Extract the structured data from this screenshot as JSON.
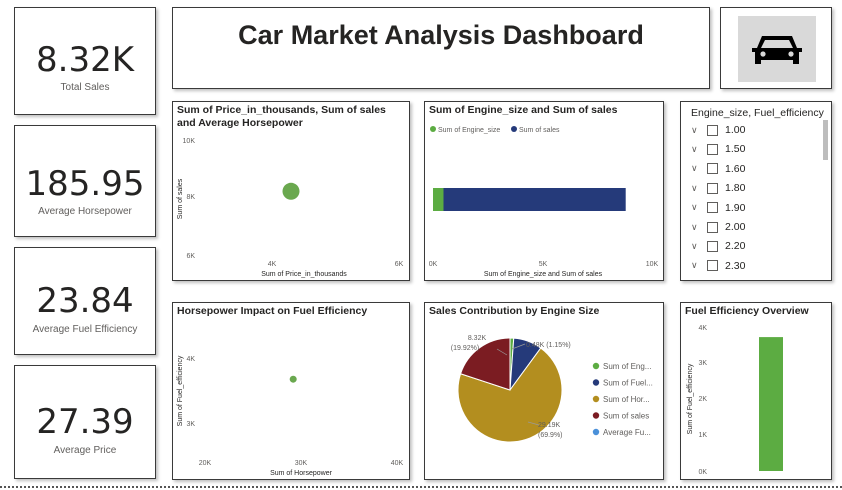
{
  "dashboard": {
    "title": "Car Market Analysis Dashboard",
    "logo_icon": "car-icon"
  },
  "kpis": [
    {
      "value": "8.32K",
      "label": "Total Sales"
    },
    {
      "value": "185.95",
      "label": "Average Horsepower"
    },
    {
      "value": "23.84",
      "label": "Average Fuel Efficiency"
    },
    {
      "value": "27.39",
      "label": "Average Price"
    }
  ],
  "scatter1": {
    "title": "Sum of Price_in_thousands, Sum of sales and Average Horsepower",
    "xlabel": "Sum of Price_in_thousands",
    "ylabel": "Sum of sales",
    "xticks": [
      "4K",
      "6K"
    ],
    "yticks": [
      "10K",
      "8K",
      "6K"
    ],
    "color": "#6aa84f"
  },
  "bar1": {
    "title": "Sum of Engine_size and Sum of sales",
    "legend": [
      "Sum of Engine_size",
      "Sum of sales"
    ],
    "colors": [
      "#5cac42",
      "#253a7a"
    ],
    "xlabel": "Sum of Engine_size and Sum of sales",
    "xticks": [
      "0K",
      "5K",
      "10K"
    ]
  },
  "slicer": {
    "header": "Engine_size, Fuel_efficiency",
    "items": [
      "1.00",
      "1.50",
      "1.60",
      "1.80",
      "1.90",
      "2.00",
      "2.20",
      "2.30"
    ]
  },
  "scatter2": {
    "title": "Horsepower Impact on Fuel Efficiency",
    "xlabel": "Sum of Horsepower",
    "ylabel": "Sum of Fuel_efficiency",
    "xticks": [
      "20K",
      "30K",
      "40K"
    ],
    "yticks": [
      "4K",
      "3K"
    ]
  },
  "pie": {
    "title": "Sales Contribution by Engine Size",
    "label_top": "8.32K",
    "label_top_pct": "(19.92%)",
    "label_right": "0.48K (1.15%)",
    "label_bottom": "29.19K",
    "label_bottom_pct": "(69.9%)",
    "legend": [
      {
        "label": "Sum of Eng...",
        "color": "#5cac42"
      },
      {
        "label": "Sum of Fuel...",
        "color": "#253a7a"
      },
      {
        "label": "Sum of Hor...",
        "color": "#b38e1f"
      },
      {
        "label": "Sum of sales",
        "color": "#7b1c22"
      },
      {
        "label": "Average Fu...",
        "color": "#4a90d9"
      }
    ]
  },
  "bar2": {
    "title": "Fuel Efficiency Overview",
    "ylabel": "Sum of Fuel_efficiency",
    "yticks": [
      "4K",
      "3K",
      "2K",
      "1K",
      "0K"
    ],
    "color": "#5cac42"
  },
  "chart_data": [
    {
      "type": "scatter",
      "title": "Sum of Price_in_thousands, Sum of sales and Average Horsepower",
      "xlabel": "Sum of Price_in_thousands",
      "ylabel": "Sum of sales",
      "xlim": [
        3000,
        6000
      ],
      "ylim": [
        6000,
        10000
      ],
      "points": [
        {
          "x": 4300,
          "y": 8320
        }
      ]
    },
    {
      "type": "bar",
      "title": "Sum of Engine_size and Sum of sales",
      "xlabel": "Sum of Engine_size and Sum of sales",
      "xlim": [
        0,
        10000
      ],
      "series": [
        {
          "name": "Sum of Engine_size",
          "values": [
            480
          ]
        },
        {
          "name": "Sum of sales",
          "values": [
            8320
          ]
        }
      ]
    },
    {
      "type": "scatter",
      "title": "Horsepower Impact on Fuel Efficiency",
      "xlabel": "Sum of Horsepower",
      "ylabel": "Sum of Fuel_efficiency",
      "xlim": [
        20000,
        40000
      ],
      "ylim": [
        2500,
        4500
      ],
      "points": [
        {
          "x": 29190,
          "y": 3720
        }
      ]
    },
    {
      "type": "pie",
      "title": "Sales Contribution by Engine Size",
      "slices": [
        {
          "name": "Sum of Eng...",
          "value": 0.48,
          "pct": 1.15
        },
        {
          "name": "Sum of Fuel...",
          "value": 3.72,
          "pct": 9.03
        },
        {
          "name": "Sum of Hor...",
          "value": 29.19,
          "pct": 69.9
        },
        {
          "name": "Sum of sales",
          "value": 8.32,
          "pct": 19.92
        },
        {
          "name": "Average Fu...",
          "value": 0.0,
          "pct": 0.0
        }
      ]
    },
    {
      "type": "bar",
      "title": "Fuel Efficiency Overview",
      "ylabel": "Sum of Fuel_efficiency",
      "ylim": [
        0,
        4000
      ],
      "values": [
        3720
      ]
    }
  ]
}
